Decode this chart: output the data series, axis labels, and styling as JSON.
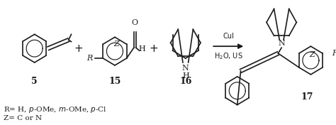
{
  "background_color": "#ffffff",
  "fig_width": 4.74,
  "fig_height": 1.76,
  "dpi": 100,
  "text_color": "#1a1a1a",
  "line_color": "#1a1a1a",
  "font_size_labels": 9,
  "font_size_small": 7,
  "font_size_plus": 11,
  "font_size_reagent": 7,
  "footer_line1": "R= H, $p$-OMe, $m$-OMe, $p$-Cl",
  "footer_line2": "Z= C or N",
  "compound_labels": [
    "5",
    "15",
    "16",
    "17"
  ],
  "reagent1": "CuI",
  "reagent2": "H$_2$O, US"
}
